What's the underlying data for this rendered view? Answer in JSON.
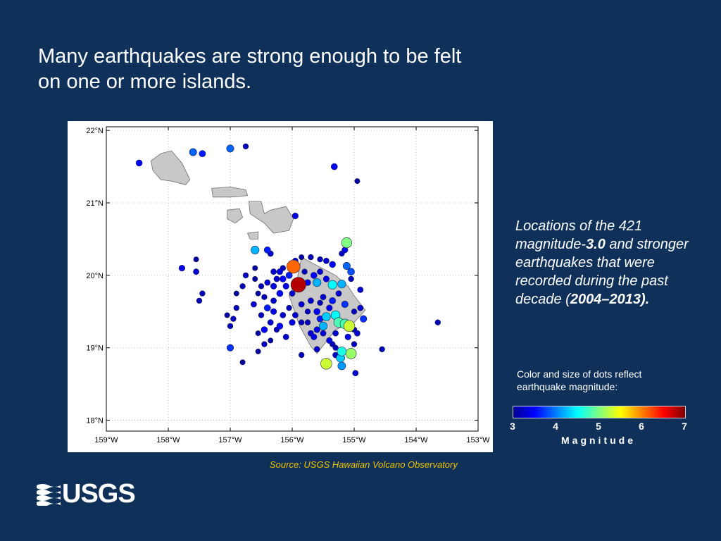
{
  "slide": {
    "title": "Many earthquakes are strong enough to be felt on one or more islands.",
    "source": "Source:  USGS Hawaiian Volcano Observatory",
    "logo_text": "USGS"
  },
  "caption": {
    "part1": "Locations of the 421 magnitude-",
    "bold1": "3.0",
    "part2": " and stronger earthquakes that were recorded during the past decade (",
    "bold2": "2004–2013).",
    "legend_note": "Color and size of dots reflect earthquake magnitude:"
  },
  "colorbar": {
    "title": "Magnitude",
    "ticks": [
      "3",
      "4",
      "5",
      "6",
      "7"
    ],
    "tick_values": [
      3,
      4,
      5,
      6,
      7
    ],
    "range": [
      3,
      7
    ],
    "colors": [
      "#00008f",
      "#0000ff",
      "#0080ff",
      "#00ffff",
      "#80ff80",
      "#ffff00",
      "#ff8000",
      "#ff0000",
      "#800000"
    ]
  },
  "map": {
    "lon_range": [
      -159,
      -153
    ],
    "lat_range": [
      17.85,
      22.05
    ],
    "x_ticks": [
      {
        "lon": -159,
        "label": "159°W"
      },
      {
        "lon": -158,
        "label": "158°W"
      },
      {
        "lon": -157,
        "label": "157°W"
      },
      {
        "lon": -156,
        "label": "156°W"
      },
      {
        "lon": -155,
        "label": "155°W"
      },
      {
        "lon": -154,
        "label": "154°W"
      },
      {
        "lon": -153,
        "label": "153°W"
      }
    ],
    "y_ticks": [
      {
        "lat": 22,
        "label": "22°N"
      },
      {
        "lat": 21,
        "label": "21°N"
      },
      {
        "lat": 20,
        "label": "20°N"
      },
      {
        "lat": 19,
        "label": "19°N"
      },
      {
        "lat": 18,
        "label": "18°N"
      }
    ],
    "grid": true,
    "land_color": "#c8c8c8",
    "islands": [
      {
        "name": "Oahu",
        "coords": [
          [
            -158.28,
            21.58
          ],
          [
            -158.12,
            21.68
          ],
          [
            -157.95,
            21.72
          ],
          [
            -157.78,
            21.55
          ],
          [
            -157.65,
            21.32
          ],
          [
            -157.72,
            21.25
          ],
          [
            -157.95,
            21.3
          ],
          [
            -158.12,
            21.32
          ],
          [
            -158.25,
            21.45
          ]
        ]
      },
      {
        "name": "Molokai",
        "coords": [
          [
            -157.3,
            21.2
          ],
          [
            -157.0,
            21.22
          ],
          [
            -156.75,
            21.18
          ],
          [
            -156.72,
            21.1
          ],
          [
            -157.0,
            21.08
          ],
          [
            -157.28,
            21.08
          ]
        ]
      },
      {
        "name": "Lanai",
        "coords": [
          [
            -157.05,
            20.9
          ],
          [
            -156.85,
            20.92
          ],
          [
            -156.8,
            20.8
          ],
          [
            -156.92,
            20.72
          ],
          [
            -157.05,
            20.78
          ]
        ]
      },
      {
        "name": "Maui",
        "coords": [
          [
            -156.7,
            21.02
          ],
          [
            -156.5,
            21.02
          ],
          [
            -156.45,
            20.85
          ],
          [
            -156.35,
            20.9
          ],
          [
            -156.1,
            20.95
          ],
          [
            -155.98,
            20.78
          ],
          [
            -156.05,
            20.62
          ],
          [
            -156.3,
            20.58
          ],
          [
            -156.45,
            20.72
          ],
          [
            -156.68,
            20.85
          ]
        ]
      },
      {
        "name": "Kahoolawe",
        "coords": [
          [
            -156.72,
            20.58
          ],
          [
            -156.55,
            20.6
          ],
          [
            -156.55,
            20.5
          ],
          [
            -156.68,
            20.5
          ]
        ]
      },
      {
        "name": "Hawaii",
        "coords": [
          [
            -155.85,
            20.25
          ],
          [
            -155.7,
            20.18
          ],
          [
            -155.3,
            20.0
          ],
          [
            -155.1,
            19.85
          ],
          [
            -155.0,
            19.72
          ],
          [
            -154.82,
            19.52
          ],
          [
            -155.0,
            19.35
          ],
          [
            -155.3,
            19.25
          ],
          [
            -155.6,
            18.92
          ],
          [
            -155.7,
            19.02
          ],
          [
            -155.88,
            19.3
          ],
          [
            -156.05,
            19.72
          ],
          [
            -155.92,
            19.95
          ]
        ]
      }
    ]
  },
  "chart_data": {
    "type": "scatter",
    "title": "",
    "xlabel": "",
    "ylabel": "",
    "xlim": [
      -159,
      -153
    ],
    "ylim": [
      17.85,
      22.05
    ],
    "size_and_color_encode": "magnitude",
    "points": [
      {
        "lon": -158.47,
        "lat": 21.55,
        "mag": 3.5
      },
      {
        "lon": -157.6,
        "lat": 21.7,
        "mag": 3.9
      },
      {
        "lon": -157.45,
        "lat": 21.68,
        "mag": 3.6
      },
      {
        "lon": -157.0,
        "lat": 21.75,
        "mag": 3.9
      },
      {
        "lon": -156.75,
        "lat": 21.78,
        "mag": 3.2
      },
      {
        "lon": -155.32,
        "lat": 21.5,
        "mag": 3.5
      },
      {
        "lon": -154.95,
        "lat": 21.3,
        "mag": 3.1
      },
      {
        "lon": -155.95,
        "lat": 20.82,
        "mag": 3.4
      },
      {
        "lon": -155.12,
        "lat": 20.45,
        "mag": 5.0
      },
      {
        "lon": -156.6,
        "lat": 20.35,
        "mag": 4.2
      },
      {
        "lon": -157.55,
        "lat": 20.22,
        "mag": 3.1
      },
      {
        "lon": -157.78,
        "lat": 20.1,
        "mag": 3.4
      },
      {
        "lon": -157.55,
        "lat": 20.05,
        "mag": 3.3
      },
      {
        "lon": -155.98,
        "lat": 20.12,
        "mag": 6.1
      },
      {
        "lon": -155.9,
        "lat": 19.87,
        "mag": 6.8
      },
      {
        "lon": -155.6,
        "lat": 19.9,
        "mag": 4.2
      },
      {
        "lon": -155.35,
        "lat": 19.87,
        "mag": 4.5
      },
      {
        "lon": -155.12,
        "lat": 20.13,
        "mag": 3.9
      },
      {
        "lon": -155.05,
        "lat": 20.05,
        "mag": 3.8
      },
      {
        "lon": -155.2,
        "lat": 19.88,
        "mag": 4.2
      },
      {
        "lon": -155.15,
        "lat": 19.6,
        "mag": 3.7
      },
      {
        "lon": -154.9,
        "lat": 19.8,
        "mag": 3.3
      },
      {
        "lon": -155.45,
        "lat": 19.43,
        "mag": 4.3
      },
      {
        "lon": -155.3,
        "lat": 19.45,
        "mag": 4.5
      },
      {
        "lon": -155.25,
        "lat": 19.35,
        "mag": 4.8
      },
      {
        "lon": -155.15,
        "lat": 19.33,
        "mag": 4.8
      },
      {
        "lon": -155.08,
        "lat": 19.3,
        "mag": 5.3
      },
      {
        "lon": -154.85,
        "lat": 19.4,
        "mag": 3.7
      },
      {
        "lon": -155.5,
        "lat": 19.3,
        "mag": 4.2
      },
      {
        "lon": -155.6,
        "lat": 19.25,
        "mag": 3.4
      },
      {
        "lon": -155.2,
        "lat": 18.95,
        "mag": 4.6
      },
      {
        "lon": -155.05,
        "lat": 18.92,
        "mag": 5.1
      },
      {
        "lon": -155.22,
        "lat": 18.86,
        "mag": 4.3
      },
      {
        "lon": -155.45,
        "lat": 18.78,
        "mag": 5.3
      },
      {
        "lon": -155.2,
        "lat": 18.75,
        "mag": 4.1
      },
      {
        "lon": -154.98,
        "lat": 18.65,
        "mag": 3.3
      },
      {
        "lon": -155.6,
        "lat": 18.98,
        "mag": 3.3
      },
      {
        "lon": -156.6,
        "lat": 20.1,
        "mag": 3.1
      },
      {
        "lon": -156.4,
        "lat": 20.35,
        "mag": 3.6
      },
      {
        "lon": -156.35,
        "lat": 20.3,
        "mag": 3.3
      },
      {
        "lon": -155.7,
        "lat": 20.25,
        "mag": 3.2
      },
      {
        "lon": -155.55,
        "lat": 20.22,
        "mag": 3.2
      },
      {
        "lon": -155.45,
        "lat": 20.2,
        "mag": 3.3
      },
      {
        "lon": -155.35,
        "lat": 20.15,
        "mag": 3.5
      },
      {
        "lon": -155.2,
        "lat": 20.3,
        "mag": 3.2
      },
      {
        "lon": -155.15,
        "lat": 20.35,
        "mag": 3.4
      },
      {
        "lon": -155.05,
        "lat": 19.95,
        "mag": 3.2
      },
      {
        "lon": -156.2,
        "lat": 20.05,
        "mag": 3.4
      },
      {
        "lon": -156.15,
        "lat": 19.95,
        "mag": 3.5
      },
      {
        "lon": -156.05,
        "lat": 20.0,
        "mag": 3.6
      },
      {
        "lon": -156.1,
        "lat": 19.85,
        "mag": 3.4
      },
      {
        "lon": -156.0,
        "lat": 19.75,
        "mag": 3.3
      },
      {
        "lon": -156.2,
        "lat": 19.75,
        "mag": 3.5
      },
      {
        "lon": -156.3,
        "lat": 19.65,
        "mag": 3.3
      },
      {
        "lon": -156.45,
        "lat": 19.7,
        "mag": 3.2
      },
      {
        "lon": -156.55,
        "lat": 19.75,
        "mag": 3.1
      },
      {
        "lon": -156.62,
        "lat": 19.6,
        "mag": 3.3
      },
      {
        "lon": -156.4,
        "lat": 19.55,
        "mag": 3.6
      },
      {
        "lon": -156.3,
        "lat": 19.5,
        "mag": 3.4
      },
      {
        "lon": -156.5,
        "lat": 19.45,
        "mag": 3.2
      },
      {
        "lon": -156.35,
        "lat": 19.35,
        "mag": 3.3
      },
      {
        "lon": -156.45,
        "lat": 19.25,
        "mag": 3.5
      },
      {
        "lon": -156.25,
        "lat": 19.25,
        "mag": 3.2
      },
      {
        "lon": -156.35,
        "lat": 19.1,
        "mag": 3.1
      },
      {
        "lon": -156.05,
        "lat": 19.55,
        "mag": 3.2
      },
      {
        "lon": -156.15,
        "lat": 19.45,
        "mag": 3.3
      },
      {
        "lon": -155.75,
        "lat": 19.5,
        "mag": 3.2
      },
      {
        "lon": -155.7,
        "lat": 19.65,
        "mag": 3.3
      },
      {
        "lon": -155.55,
        "lat": 19.62,
        "mag": 3.2
      },
      {
        "lon": -155.85,
        "lat": 19.35,
        "mag": 3.2
      },
      {
        "lon": -155.7,
        "lat": 19.2,
        "mag": 3.3
      },
      {
        "lon": -155.65,
        "lat": 19.15,
        "mag": 3.4
      },
      {
        "lon": -155.4,
        "lat": 19.1,
        "mag": 3.4
      },
      {
        "lon": -155.35,
        "lat": 19.05,
        "mag": 3.2
      },
      {
        "lon": -155.3,
        "lat": 19.2,
        "mag": 3.3
      },
      {
        "lon": -155.0,
        "lat": 19.5,
        "mag": 3.2
      },
      {
        "lon": -154.9,
        "lat": 19.55,
        "mag": 3.3
      },
      {
        "lon": -155.0,
        "lat": 19.25,
        "mag": 3.2
      },
      {
        "lon": -156.9,
        "lat": 19.55,
        "mag": 3.2
      },
      {
        "lon": -156.9,
        "lat": 19.75,
        "mag": 3.1
      },
      {
        "lon": -156.8,
        "lat": 19.85,
        "mag": 3.2
      },
      {
        "lon": -156.95,
        "lat": 19.4,
        "mag": 3.2
      },
      {
        "lon": -157.05,
        "lat": 19.45,
        "mag": 3.1
      },
      {
        "lon": -157.0,
        "lat": 19.3,
        "mag": 3.2
      },
      {
        "lon": -157.0,
        "lat": 19.0,
        "mag": 3.7
      },
      {
        "lon": -156.8,
        "lat": 18.8,
        "mag": 3.1
      },
      {
        "lon": -156.75,
        "lat": 20.0,
        "mag": 3.2
      },
      {
        "lon": -156.6,
        "lat": 19.95,
        "mag": 3.1
      },
      {
        "lon": -157.45,
        "lat": 19.75,
        "mag": 3.2
      },
      {
        "lon": -157.5,
        "lat": 19.65,
        "mag": 3.2
      },
      {
        "lon": -155.85,
        "lat": 18.9,
        "mag": 3.2
      },
      {
        "lon": -155.0,
        "lat": 19.05,
        "mag": 3.2
      },
      {
        "lon": -154.55,
        "lat": 18.98,
        "mag": 3.2
      },
      {
        "lon": -153.65,
        "lat": 19.35,
        "mag": 3.2
      },
      {
        "lon": -156.2,
        "lat": 19.3,
        "mag": 3.5
      },
      {
        "lon": -156.1,
        "lat": 19.15,
        "mag": 3.3
      },
      {
        "lon": -155.55,
        "lat": 19.4,
        "mag": 3.6
      },
      {
        "lon": -155.6,
        "lat": 19.5,
        "mag": 3.5
      },
      {
        "lon": -155.4,
        "lat": 19.55,
        "mag": 3.4
      },
      {
        "lon": -155.5,
        "lat": 19.7,
        "mag": 3.3
      },
      {
        "lon": -155.35,
        "lat": 19.65,
        "mag": 3.6
      },
      {
        "lon": -155.25,
        "lat": 19.75,
        "mag": 3.3
      },
      {
        "lon": -155.45,
        "lat": 19.95,
        "mag": 3.4
      },
      {
        "lon": -155.55,
        "lat": 20.05,
        "mag": 3.3
      },
      {
        "lon": -155.65,
        "lat": 20.0,
        "mag": 3.5
      },
      {
        "lon": -155.8,
        "lat": 20.05,
        "mag": 3.2
      },
      {
        "lon": -155.75,
        "lat": 19.9,
        "mag": 3.4
      },
      {
        "lon": -155.85,
        "lat": 19.6,
        "mag": 3.3
      },
      {
        "lon": -155.95,
        "lat": 19.45,
        "mag": 3.3
      },
      {
        "lon": -156.0,
        "lat": 19.35,
        "mag": 3.4
      },
      {
        "lon": -155.75,
        "lat": 19.35,
        "mag": 3.2
      },
      {
        "lon": -155.5,
        "lat": 19.2,
        "mag": 3.3
      },
      {
        "lon": -155.3,
        "lat": 19.0,
        "mag": 3.2
      },
      {
        "lon": -155.3,
        "lat": 18.9,
        "mag": 3.3
      },
      {
        "lon": -155.1,
        "lat": 19.15,
        "mag": 3.4
      },
      {
        "lon": -154.95,
        "lat": 19.2,
        "mag": 3.3
      },
      {
        "lon": -156.5,
        "lat": 19.85,
        "mag": 3.2
      },
      {
        "lon": -156.4,
        "lat": 19.9,
        "mag": 3.3
      },
      {
        "lon": -156.3,
        "lat": 19.85,
        "mag": 3.4
      },
      {
        "lon": -156.25,
        "lat": 19.95,
        "mag": 3.3
      },
      {
        "lon": -156.3,
        "lat": 20.05,
        "mag": 3.3
      },
      {
        "lon": -156.15,
        "lat": 20.1,
        "mag": 3.2
      },
      {
        "lon": -155.95,
        "lat": 20.2,
        "mag": 3.3
      },
      {
        "lon": -155.85,
        "lat": 20.25,
        "mag": 3.1
      },
      {
        "lon": -156.55,
        "lat": 19.2,
        "mag": 3.1
      },
      {
        "lon": -156.45,
        "lat": 19.05,
        "mag": 3.2
      },
      {
        "lon": -156.55,
        "lat": 18.95,
        "mag": 3.1
      }
    ]
  }
}
